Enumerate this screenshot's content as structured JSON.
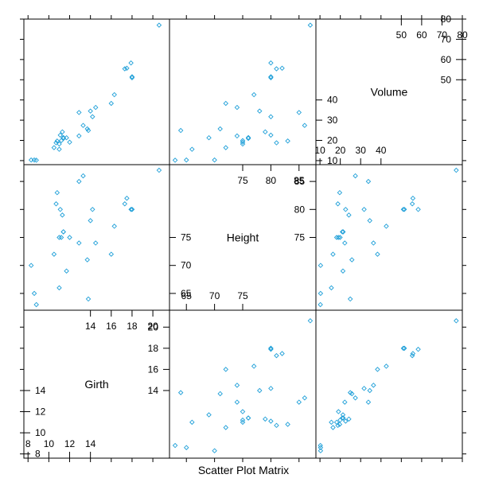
{
  "chart_data": {
    "type": "scatter",
    "title": "Scatter Plot Matrix",
    "variables": [
      "Girth",
      "Height",
      "Volume"
    ],
    "point_color": "#1e9fd8",
    "marker": "diamond-open",
    "variable_axes": {
      "Girth": {
        "range": [
          7.6,
          21.6
        ],
        "outer_ticks": [
          8,
          10,
          12,
          14,
          16,
          18,
          20
        ],
        "labels_low": [
          "8",
          "10",
          "12",
          "14"
        ],
        "labels_high": [
          "14",
          "16",
          "18",
          "20"
        ]
      },
      "Height": {
        "range": [
          62,
          88
        ],
        "outer_ticks": [
          65,
          70,
          75,
          80,
          85
        ],
        "labels_low": [
          "65",
          "70",
          "75"
        ],
        "labels_high": [
          "75",
          "80",
          "85"
        ]
      },
      "Volume": {
        "range": [
          8,
          80
        ],
        "outer_ticks": [
          10,
          20,
          30,
          40,
          50,
          60,
          70,
          80
        ],
        "labels_low": [
          "10",
          "20",
          "30",
          "40"
        ],
        "labels_high": [
          "50",
          "60",
          "70",
          "80"
        ]
      }
    },
    "data": {
      "Girth": [
        8.3,
        8.6,
        8.8,
        10.5,
        10.7,
        10.8,
        11.0,
        11.0,
        11.1,
        11.2,
        11.3,
        11.4,
        11.4,
        11.7,
        12.0,
        12.9,
        12.9,
        13.3,
        13.7,
        13.8,
        14.0,
        14.2,
        14.5,
        16.0,
        16.3,
        17.3,
        17.5,
        17.9,
        18.0,
        18.0,
        20.6
      ],
      "Height": [
        70,
        65,
        63,
        72,
        81,
        83,
        66,
        75,
        80,
        75,
        79,
        76,
        76,
        69,
        75,
        74,
        85,
        86,
        71,
        64,
        78,
        80,
        74,
        72,
        77,
        81,
        82,
        80,
        80,
        80,
        87
      ],
      "Volume": [
        10.3,
        10.3,
        10.2,
        16.4,
        18.8,
        19.7,
        15.6,
        18.2,
        22.6,
        19.9,
        24.2,
        21.0,
        21.4,
        21.3,
        19.1,
        22.2,
        33.8,
        27.4,
        25.7,
        24.9,
        34.5,
        31.7,
        36.3,
        38.3,
        42.6,
        55.4,
        55.7,
        58.3,
        51.5,
        51.0,
        77.0
      ]
    },
    "grid": false,
    "legend": "none"
  }
}
